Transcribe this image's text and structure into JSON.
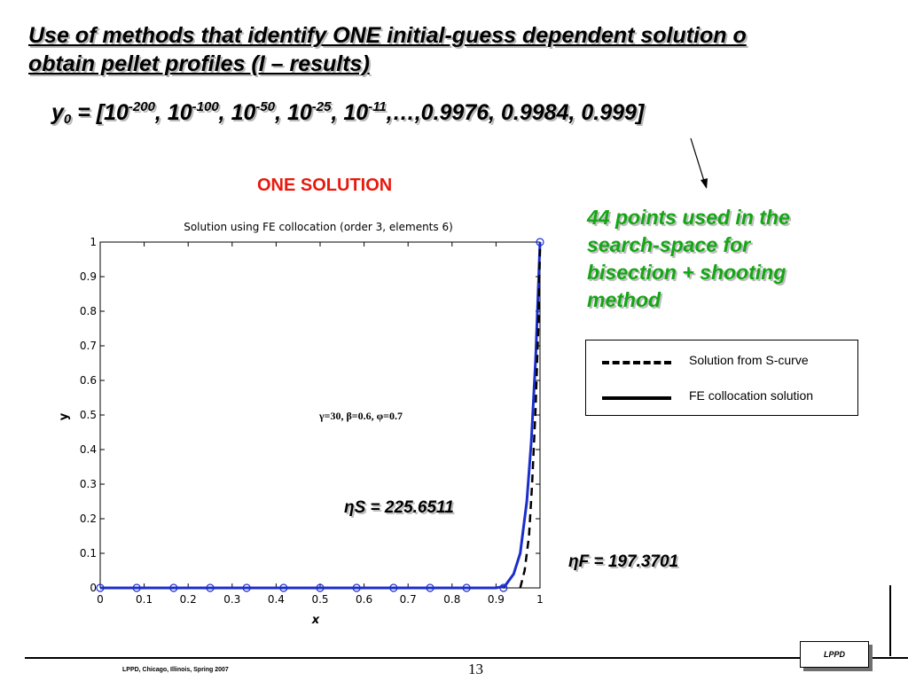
{
  "slide": {
    "title_line1": "Use of methods that identify ONE initial-guess dependent solution o",
    "title_line2": "obtain pellet profiles (I – results)",
    "vector": {
      "var": "y",
      "sub": "0",
      "prefix": " = [",
      "base": "10",
      "exponents": [
        "-200",
        "-100",
        "-50",
        "-25",
        "-11"
      ],
      "tail": ",…,0.9976, 0.9984, 0.999]"
    },
    "one_solution_label": "ONE SOLUTION",
    "note_line1": "44 points used in the",
    "note_line2": "search-space for",
    "note_line3": "bisection + shooting",
    "note_line4": "method",
    "eta_s": "ηS = 225.6511",
    "eta_f": "ηF = 197.3701",
    "footer_text": "LPPD, Chicago, Illinois, Spring 2007",
    "page_number": "13",
    "logo_text": "LPPD"
  },
  "legend": {
    "items": [
      {
        "label": "Solution from S-curve",
        "style": "dashed"
      },
      {
        "label": "FE collocation solution",
        "style": "solid"
      }
    ]
  },
  "chart_data": {
    "type": "line",
    "title": "Solution using FE collocation (order 3, elements 6)",
    "xlabel": "x",
    "ylabel": "y",
    "xlim": [
      0,
      1
    ],
    "ylim": [
      0,
      1
    ],
    "xticks": [
      "0",
      "0.1",
      "0.2",
      "0.3",
      "0.4",
      "0.5",
      "0.6",
      "0.7",
      "0.8",
      "0.9",
      "1"
    ],
    "yticks": [
      "0",
      "0.1",
      "0.2",
      "0.3",
      "0.4",
      "0.5",
      "0.6",
      "0.7",
      "0.8",
      "0.9",
      "1"
    ],
    "grid": false,
    "annotation": "γ=30, β=0.6, φ=0.7",
    "series": [
      {
        "style": "solid",
        "color": "#1a2ecc",
        "x": [
          0,
          0.1,
          0.2,
          0.3,
          0.4,
          0.5,
          0.6,
          0.7,
          0.8,
          0.9,
          0.92,
          0.94,
          0.955,
          0.97,
          0.98,
          0.99,
          1.0
        ],
        "y": [
          0,
          0,
          0,
          0,
          0,
          0,
          0,
          0,
          0,
          0,
          0.005,
          0.04,
          0.1,
          0.25,
          0.42,
          0.66,
          1.0
        ]
      },
      {
        "style": "dashed",
        "color": "#000000",
        "x": [
          0.955,
          0.965,
          0.975,
          0.982,
          0.99,
          0.996,
          1.0
        ],
        "y": [
          0.0,
          0.05,
          0.15,
          0.3,
          0.52,
          0.75,
          0.98
        ]
      },
      {
        "style": "markers",
        "color": "#1a2ecc",
        "x": [
          0,
          0.083,
          0.167,
          0.25,
          0.333,
          0.417,
          0.5,
          0.583,
          0.667,
          0.75,
          0.833,
          0.917,
          1.0
        ],
        "y": [
          0,
          0,
          0,
          0,
          0,
          0,
          0,
          0,
          0,
          0,
          0,
          0,
          1.0
        ]
      }
    ]
  }
}
